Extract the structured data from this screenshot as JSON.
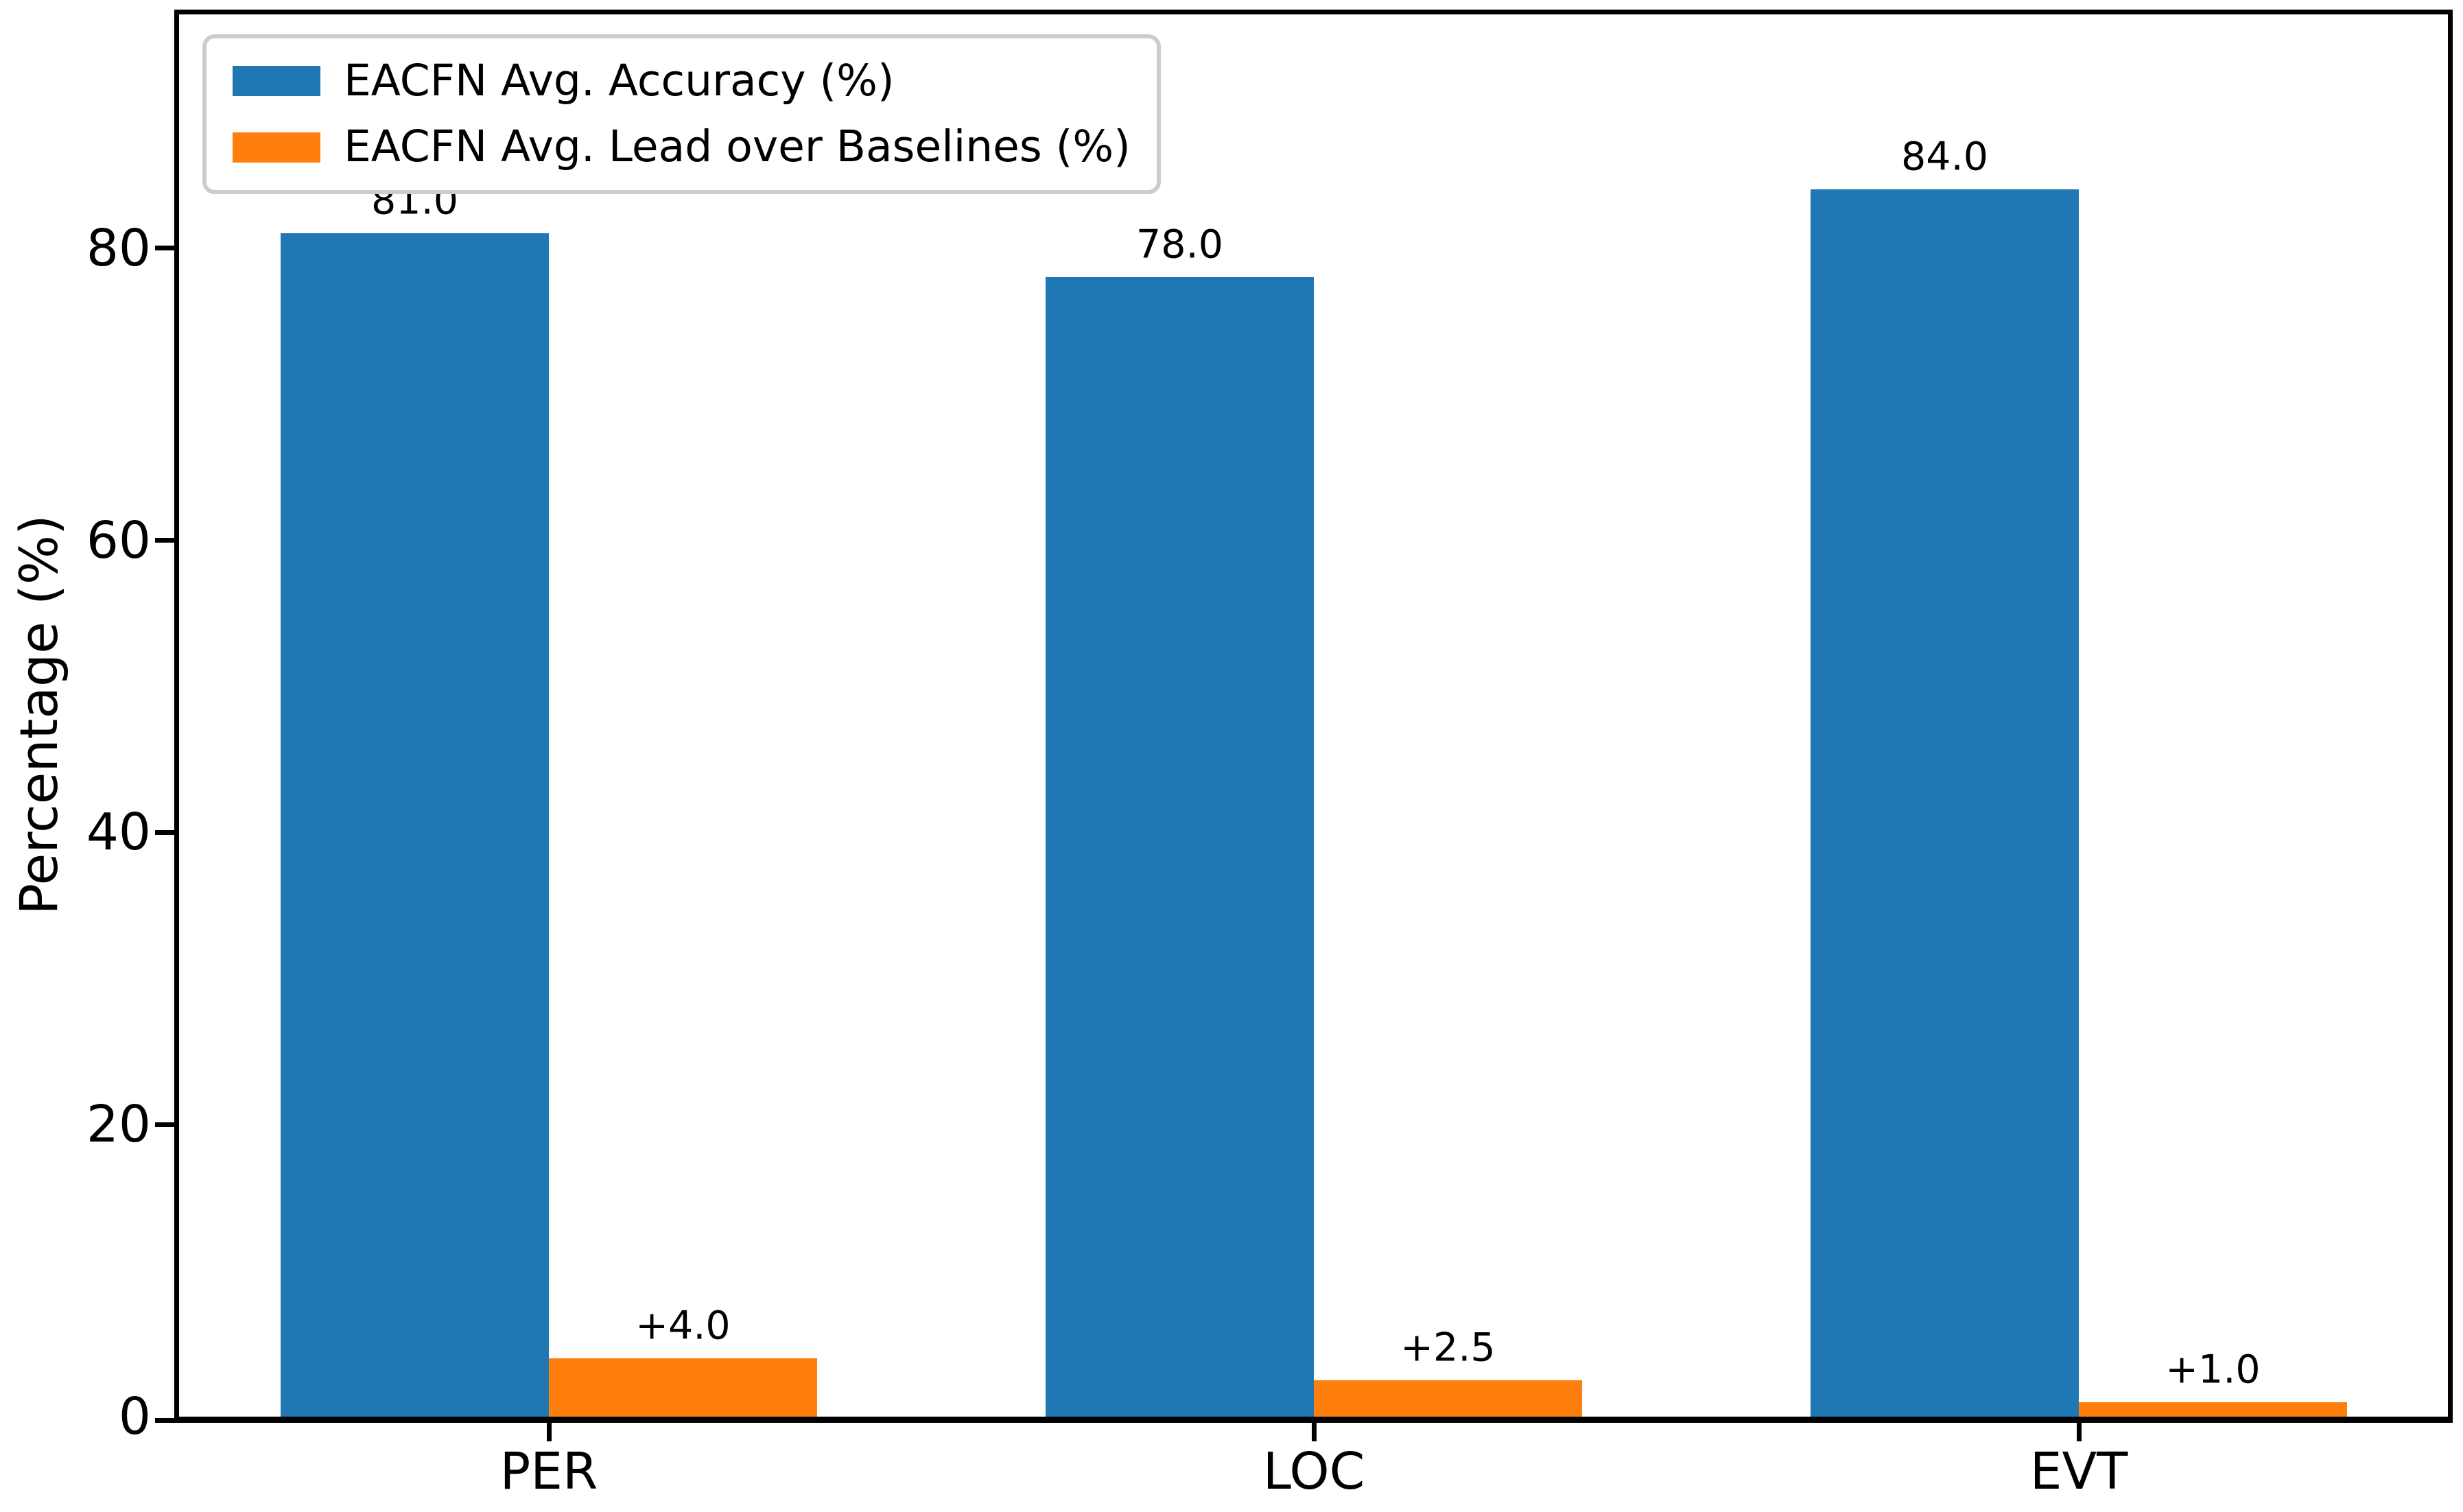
{
  "chart_data": {
    "type": "bar",
    "title": "",
    "categories": [
      "PER",
      "LOC",
      "EVT"
    ],
    "series": [
      {
        "name": "EACFN Avg. Accuracy (%)",
        "color": "#1f77b4",
        "values": [
          81.0,
          78.0,
          84.0
        ],
        "labels": [
          "81.0",
          "78.0",
          "84.0"
        ]
      },
      {
        "name": "EACFN Avg. Lead over Baselines (%)",
        "color": "#ff7f0e",
        "values": [
          4.0,
          2.5,
          1.0
        ],
        "labels": [
          "+4.0",
          "+2.5",
          "+1.0"
        ]
      }
    ],
    "xlabel": "",
    "ylabel": "Percentage (%)",
    "yticks": [
      0,
      20,
      40,
      60,
      80
    ],
    "ylim": [
      0,
      96
    ],
    "grid": false,
    "legend_position": "upper left",
    "axis_color": "#000000",
    "background_color": "#ffffff"
  }
}
